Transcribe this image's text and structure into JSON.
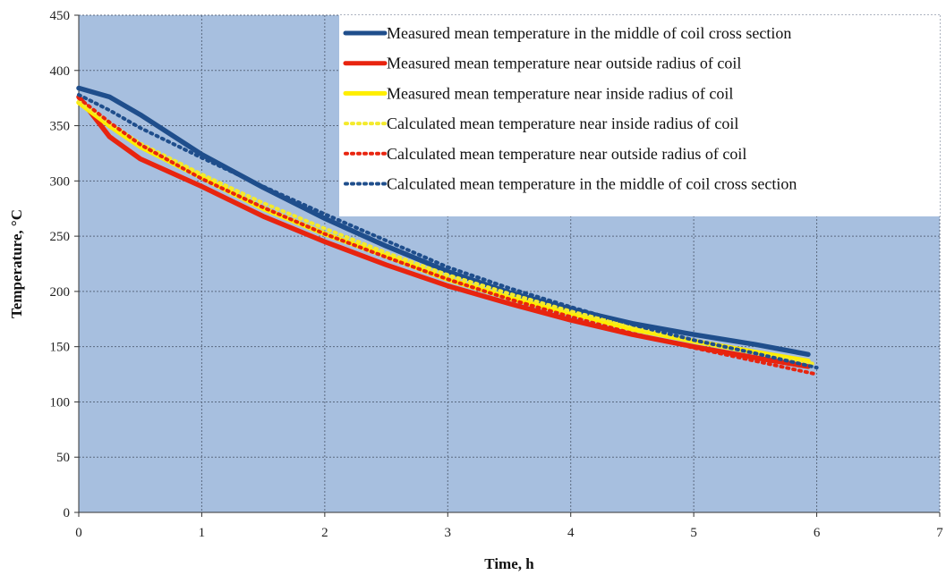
{
  "chart_data": {
    "type": "line",
    "title": "",
    "xlabel": "Time, h",
    "ylabel": "Temperature, °C",
    "xlim": [
      0,
      7
    ],
    "ylim": [
      0,
      450
    ],
    "x_ticks": [
      0,
      1,
      2,
      3,
      4,
      5,
      6,
      7
    ],
    "y_ticks": [
      0,
      50,
      100,
      150,
      200,
      250,
      300,
      350,
      400,
      450
    ],
    "grid": true,
    "legend_placement": "top-right",
    "plot_background": "#a7bfdf",
    "series": [
      {
        "name": "Measured mean temperature in the middle of coil cross section",
        "color": "#1f4e8c",
        "style": "solid",
        "x": [
          0,
          0.25,
          0.5,
          1,
          1.5,
          2,
          2.5,
          3,
          3.5,
          4,
          4.5,
          5,
          5.5,
          5.93
        ],
        "y": [
          384,
          376,
          360,
          324,
          294,
          266,
          241,
          218,
          199,
          184,
          171,
          161,
          152,
          143
        ]
      },
      {
        "name": "Measured mean temperature near outside radius of coil",
        "color": "#e8240f",
        "style": "solid",
        "x": [
          0,
          0.25,
          0.5,
          1,
          1.5,
          2,
          2.5,
          3,
          3.5,
          4,
          4.5,
          5,
          5.5,
          5.93
        ],
        "y": [
          376,
          340,
          320,
          295,
          268,
          245,
          224,
          205,
          189,
          174,
          161,
          150,
          140,
          132
        ]
      },
      {
        "name": "Measured mean temperature near inside radius of coil",
        "color": "#ffee00",
        "style": "solid",
        "x": [
          0,
          0.25,
          0.5,
          1,
          1.5,
          2,
          2.5,
          3,
          3.5,
          4,
          4.5,
          5,
          5.5,
          5.93
        ],
        "y": [
          371,
          350,
          331,
          303,
          275,
          252,
          232,
          211,
          194,
          180,
          166,
          155,
          145,
          137
        ]
      },
      {
        "name": "Calculated mean temperature near inside radius of coil",
        "color": "#f4ea2c",
        "style": "dotted",
        "x": [
          0,
          0.25,
          0.5,
          1,
          1.5,
          2,
          2.5,
          3,
          3.5,
          4,
          4.5,
          5,
          5.5,
          6
        ],
        "y": [
          372,
          352,
          334,
          306,
          280,
          257,
          235,
          215,
          198,
          182,
          168,
          155,
          144,
          134
        ]
      },
      {
        "name": "Calculated mean temperature near outside radius of coil",
        "color": "#e8240f",
        "style": "dotted",
        "x": [
          0,
          0.25,
          0.5,
          1,
          1.5,
          2,
          2.5,
          3,
          3.5,
          4,
          4.5,
          5,
          5.5,
          6
        ],
        "y": [
          375,
          353,
          333,
          302,
          276,
          252,
          231,
          211,
          193,
          177,
          162,
          149,
          137,
          125
        ]
      },
      {
        "name": "Calculated mean temperature in the middle of coil cross section",
        "color": "#1f4e8c",
        "style": "dotted",
        "x": [
          0,
          0.25,
          0.5,
          1,
          1.5,
          2,
          2.5,
          3,
          3.5,
          4,
          4.5,
          5,
          5.5,
          6
        ],
        "y": [
          378,
          364,
          348,
          321,
          295,
          270,
          246,
          222,
          203,
          186,
          170,
          156,
          144,
          131
        ]
      }
    ]
  }
}
